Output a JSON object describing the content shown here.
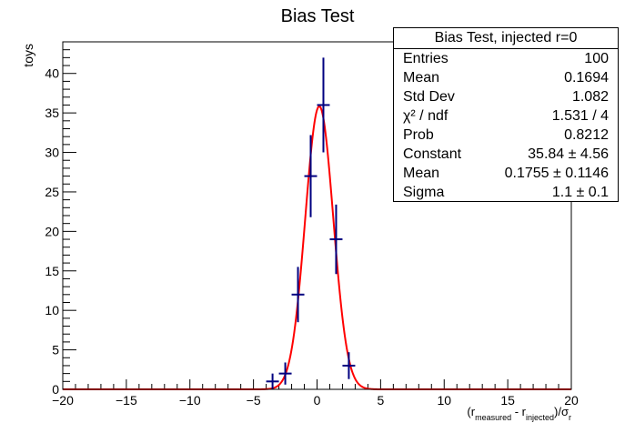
{
  "chart_data": {
    "type": "histogram",
    "title": "Bias Test",
    "ylabel": "toys",
    "xlabel_parts": {
      "open": "(r",
      "measured": "measured",
      "minus": " - r",
      "injected": "injected",
      "close": ")/σ",
      "r": "r"
    },
    "xlim": [
      -20,
      20
    ],
    "ylim": [
      0,
      44
    ],
    "x_ticks": [
      -20,
      -15,
      -10,
      -5,
      0,
      5,
      10,
      15,
      20
    ],
    "y_ticks": [
      0,
      5,
      10,
      15,
      20,
      25,
      30,
      35,
      40
    ],
    "points": [
      {
        "x": -3.5,
        "y": 1,
        "err": 1.0
      },
      {
        "x": -2.5,
        "y": 2,
        "err": 1.4
      },
      {
        "x": -1.5,
        "y": 12,
        "err": 3.5
      },
      {
        "x": -0.5,
        "y": 27,
        "err": 5.2
      },
      {
        "x": 0.5,
        "y": 36,
        "err": 6.0
      },
      {
        "x": 1.5,
        "y": 19,
        "err": 4.4
      },
      {
        "x": 2.5,
        "y": 3,
        "err": 1.7
      }
    ],
    "bin_width": 1,
    "fit": {
      "type": "gaus",
      "constant": 35.84,
      "mean": 0.1755,
      "sigma": 1.1
    },
    "colors": {
      "points": "#000080",
      "fit": "#ff0000"
    }
  },
  "stats": {
    "title": "Bias Test, injected r=0",
    "rows": [
      {
        "label": "Entries",
        "value": "100"
      },
      {
        "label": "Mean",
        "value": "0.1694"
      },
      {
        "label": "Std Dev",
        "value": "1.082"
      },
      {
        "label": "χ² / ndf",
        "value": "1.531 / 4"
      },
      {
        "label": "Prob",
        "value": "0.8212"
      },
      {
        "label": "Constant",
        "value": "35.84 ± 4.56"
      },
      {
        "label": "Mean",
        "value": "0.1755 ± 0.1146"
      },
      {
        "label": "Sigma",
        "value": "1.1 ± 0.1"
      }
    ]
  }
}
